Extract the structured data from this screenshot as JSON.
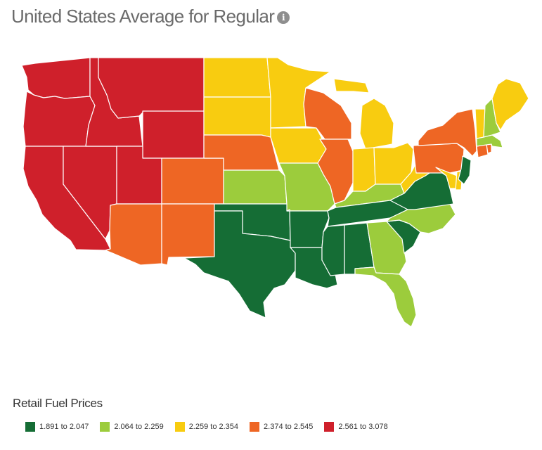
{
  "header": {
    "title": "United States Average for Regular",
    "info_icon": "info-icon"
  },
  "legend": {
    "title": "Retail Fuel Prices",
    "items": [
      {
        "label": "1.891 to 2.047",
        "color": "#156d35"
      },
      {
        "label": "2.064 to 2.259",
        "color": "#9ccc3c"
      },
      {
        "label": "2.259 to 2.354",
        "color": "#f8cc10"
      },
      {
        "label": "2.374 to 2.545",
        "color": "#ee6624"
      },
      {
        "label": "2.561 to 3.078",
        "color": "#cf202b"
      }
    ]
  },
  "colors": {
    "dark_green": "#156d35",
    "light_green": "#9ccc3c",
    "yellow": "#f8cc10",
    "orange": "#ee6624",
    "red": "#cf202b"
  },
  "map_states": {
    "WA": "red",
    "OR": "red",
    "CA": "red",
    "NV": "red",
    "ID": "red",
    "MT": "red",
    "WY": "red",
    "UT": "red",
    "AZ": "orange",
    "CO": "orange",
    "NM": "orange",
    "NE": "orange",
    "IL": "orange",
    "WI": "orange",
    "NY": "orange",
    "PA": "orange",
    "CT": "orange",
    "RI": "orange",
    "ND": "yellow",
    "SD": "yellow",
    "MN": "yellow",
    "IA": "yellow",
    "MI": "yellow",
    "IN": "yellow",
    "OH": "yellow",
    "ME": "yellow",
    "VT": "yellow",
    "WV": "yellow",
    "MD": "yellow",
    "DE": "yellow",
    "KS": "light_green",
    "MO": "light_green",
    "KY": "light_green",
    "NC": "light_green",
    "GA": "light_green",
    "FL": "light_green",
    "NH": "light_green",
    "MA": "light_green",
    "TX": "dark_green",
    "OK": "dark_green",
    "AR": "dark_green",
    "LA": "dark_green",
    "MS": "dark_green",
    "AL": "dark_green",
    "TN": "dark_green",
    "SC": "dark_green",
    "VA": "dark_green",
    "NJ": "dark_green"
  }
}
